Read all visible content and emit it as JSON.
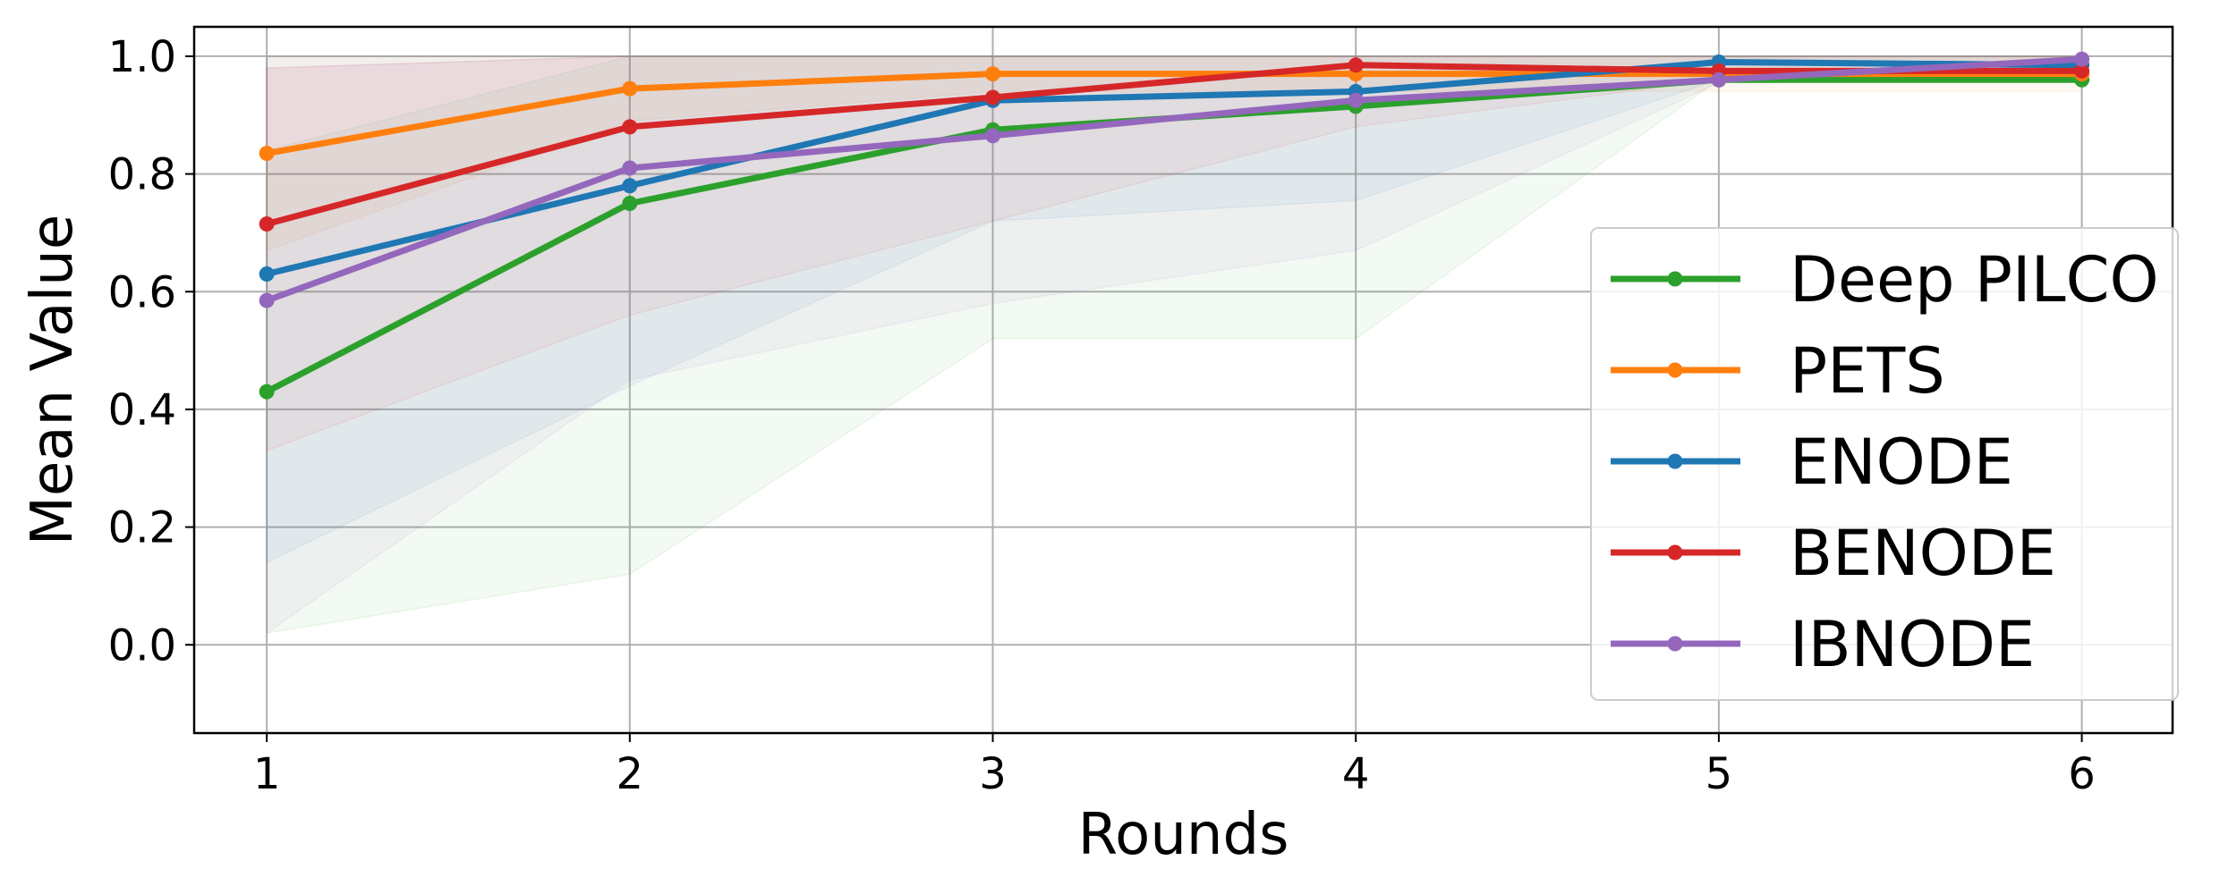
{
  "chart_data": {
    "type": "line",
    "title": "",
    "xlabel": "Rounds",
    "ylabel": "Mean Value",
    "x": [
      1,
      2,
      3,
      4,
      5,
      6
    ],
    "xticks": [
      "1",
      "2",
      "3",
      "4",
      "5",
      "6"
    ],
    "yticks": [
      "0.0",
      "0.2",
      "0.4",
      "0.6",
      "0.8",
      "1.0"
    ],
    "xlim": [
      0.8,
      6.25
    ],
    "ylim": [
      -0.15,
      1.05
    ],
    "grid": true,
    "legend_position": "right",
    "series": [
      {
        "name": "Deep PILCO",
        "color": "#2ca02c",
        "values": [
          0.43,
          0.75,
          0.875,
          0.915,
          0.96,
          0.96
        ],
        "band_lower": [
          0.02,
          0.12,
          0.52,
          0.52,
          0.96,
          0.96
        ],
        "band_upper": [
          0.84,
          1.0,
          1.0,
          1.0,
          1.0,
          1.0
        ]
      },
      {
        "name": "PETS",
        "color": "#ff7f0e",
        "values": [
          0.835,
          0.945,
          0.97,
          0.97,
          0.97,
          0.97
        ],
        "band_lower": [
          0.67,
          0.89,
          0.94,
          0.94,
          0.94,
          0.94
        ],
        "band_upper": [
          1.0,
          1.0,
          1.0,
          1.0,
          1.0,
          1.0
        ]
      },
      {
        "name": "ENODE",
        "color": "#1f77b4",
        "values": [
          0.63,
          0.78,
          0.925,
          0.94,
          0.99,
          0.985
        ],
        "band_lower": [
          0.14,
          0.44,
          0.72,
          0.755,
          0.96,
          0.97
        ],
        "band_upper": [
          1.0,
          1.0,
          1.0,
          1.0,
          1.0,
          1.0
        ]
      },
      {
        "name": "BENODE",
        "color": "#d62728",
        "values": [
          0.715,
          0.88,
          0.93,
          0.985,
          0.975,
          0.975
        ],
        "band_lower": [
          0.33,
          0.56,
          0.72,
          0.88,
          0.96,
          0.96
        ],
        "band_upper": [
          0.98,
          1.0,
          1.0,
          1.0,
          1.0,
          1.0
        ]
      },
      {
        "name": "IBNODE",
        "color": "#9467bd",
        "values": [
          0.585,
          0.81,
          0.865,
          0.925,
          0.96,
          0.995
        ],
        "band_lower": [
          0.02,
          0.45,
          0.58,
          0.67,
          0.955,
          0.99
        ],
        "band_upper": [
          0.98,
          1.0,
          1.0,
          1.0,
          1.0,
          1.0
        ]
      }
    ]
  }
}
